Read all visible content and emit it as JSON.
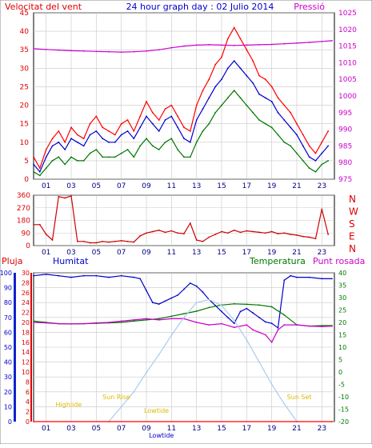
{
  "chart_data": [
    {
      "type": "line",
      "title": "24 hour graph day : 02 Julio 2014",
      "left_label": "Velocitat del vent",
      "right_label": "Pressió",
      "x_ticks": [
        "01",
        "03",
        "05",
        "07",
        "09",
        "11",
        "13",
        "15",
        "17",
        "19",
        "21",
        "23"
      ],
      "ylim": [
        0,
        45
      ],
      "y_ticks": [
        "0",
        "5",
        "10",
        "15",
        "20",
        "25",
        "30",
        "35",
        "40",
        "45"
      ],
      "y2lim": [
        975,
        1025
      ],
      "y2_ticks": [
        "975",
        "980",
        "985",
        "990",
        "995",
        "1000",
        "1005",
        "1010",
        "1015",
        "1020",
        "1025"
      ],
      "series": [
        {
          "color": "#ff0000",
          "x": [
            0,
            0.5,
            1,
            1.5,
            2,
            2.5,
            3,
            3.5,
            4,
            4.5,
            5,
            5.5,
            6,
            6.5,
            7,
            7.5,
            8,
            8.5,
            9,
            9.5,
            10,
            10.5,
            11,
            11.5,
            12,
            12.5,
            13,
            13.5,
            14,
            14.5,
            15,
            15.5,
            16,
            16.5,
            17,
            17.5,
            18,
            18.5,
            19,
            19.5,
            20,
            20.5,
            21,
            21.5,
            22,
            22.5,
            23,
            23.5
          ],
          "values": [
            6,
            3,
            8,
            11,
            13,
            10,
            14,
            12,
            11,
            15,
            17,
            14,
            13,
            12,
            15,
            16,
            13,
            17,
            21,
            18,
            16,
            19,
            20,
            17,
            14,
            13,
            20,
            24,
            27,
            31,
            33,
            38,
            41,
            38,
            35,
            32,
            28,
            27,
            25,
            22,
            20,
            18,
            15,
            12,
            9,
            7,
            10,
            13
          ]
        },
        {
          "color": "#0000cc",
          "x": [
            0,
            0.5,
            1,
            1.5,
            2,
            2.5,
            3,
            3.5,
            4,
            4.5,
            5,
            5.5,
            6,
            6.5,
            7,
            7.5,
            8,
            8.5,
            9,
            9.5,
            10,
            10.5,
            11,
            11.5,
            12,
            12.5,
            13,
            13.5,
            14,
            14.5,
            15,
            15.5,
            16,
            16.5,
            17,
            17.5,
            18,
            18.5,
            19,
            19.5,
            20,
            20.5,
            21,
            21.5,
            22,
            22.5,
            23,
            23.5
          ],
          "values": [
            4,
            2,
            6,
            9,
            10,
            8,
            11,
            10,
            9,
            12,
            13,
            11,
            10,
            10,
            12,
            13,
            11,
            14,
            17,
            15,
            13,
            16,
            17,
            14,
            11,
            10,
            16,
            19,
            22,
            25,
            27,
            30,
            32,
            30,
            28,
            26,
            23,
            22,
            21,
            18,
            16,
            14,
            12,
            9,
            6,
            5,
            7,
            9
          ]
        },
        {
          "color": "#007700",
          "x": [
            0,
            0.5,
            1,
            1.5,
            2,
            2.5,
            3,
            3.5,
            4,
            4.5,
            5,
            5.5,
            6,
            6.5,
            7,
            7.5,
            8,
            8.5,
            9,
            9.5,
            10,
            10.5,
            11,
            11.5,
            12,
            12.5,
            13,
            13.5,
            14,
            14.5,
            15,
            15.5,
            16,
            16.5,
            17,
            17.5,
            18,
            18.5,
            19,
            19.5,
            20,
            20.5,
            21,
            21.5,
            22,
            22.5,
            23,
            23.5
          ],
          "values": [
            2,
            1,
            3,
            5,
            6,
            4,
            6,
            5,
            5,
            7,
            8,
            6,
            6,
            6,
            7,
            8,
            6,
            9,
            11,
            9,
            8,
            10,
            11,
            8,
            6,
            6,
            10,
            13,
            15,
            18,
            20,
            22,
            24,
            22,
            20,
            18,
            16,
            15,
            14,
            12,
            10,
            9,
            7,
            5,
            3,
            2,
            4,
            5
          ]
        },
        {
          "color": "#cc00cc",
          "axis": "right",
          "x": [
            0,
            1,
            2,
            3,
            4,
            5,
            6,
            7,
            8,
            9,
            10,
            11,
            12,
            13,
            14,
            15,
            16,
            17,
            18,
            19,
            20,
            21,
            22,
            23,
            23.8
          ],
          "values": [
            1014.2,
            1014.0,
            1013.8,
            1013.6,
            1013.5,
            1013.4,
            1013.3,
            1013.2,
            1013.3,
            1013.5,
            1013.9,
            1014.5,
            1015.0,
            1015.3,
            1015.4,
            1015.3,
            1015.2,
            1015.3,
            1015.4,
            1015.5,
            1015.7,
            1015.9,
            1016.1,
            1016.4,
            1016.6
          ]
        }
      ]
    },
    {
      "type": "line",
      "ylim": [
        0,
        360
      ],
      "y_ticks": [
        "0",
        "90",
        "180",
        "270",
        "360"
      ],
      "right_ticks": [
        "N",
        "W",
        "S",
        "E",
        "N"
      ],
      "x_ticks": [
        "01",
        "03",
        "05",
        "07",
        "09",
        "11",
        "13",
        "15",
        "17",
        "19",
        "21",
        "23"
      ],
      "series": [
        {
          "color": "#cc0000",
          "x": [
            0,
            0.5,
            1,
            1.5,
            2,
            2.5,
            3,
            3.5,
            4,
            4.5,
            5,
            5.5,
            6,
            6.5,
            7,
            7.5,
            8,
            8.5,
            9,
            9.5,
            10,
            10.5,
            11,
            11.5,
            12,
            12.5,
            13,
            13.5,
            14,
            14.5,
            15,
            15.5,
            16,
            16.5,
            17,
            17.5,
            18,
            18.5,
            19,
            19.5,
            20,
            20.5,
            21,
            21.5,
            22,
            22.5,
            23,
            23.5
          ],
          "values": [
            150,
            150,
            80,
            40,
            350,
            340,
            355,
            30,
            30,
            20,
            20,
            30,
            25,
            30,
            35,
            30,
            25,
            70,
            90,
            100,
            110,
            95,
            105,
            90,
            85,
            160,
            40,
            30,
            60,
            80,
            100,
            90,
            110,
            95,
            105,
            100,
            95,
            90,
            100,
            85,
            90,
            80,
            75,
            65,
            60,
            50,
            260,
            80
          ]
        }
      ]
    },
    {
      "type": "line",
      "labels": {
        "rain": "Pluja",
        "humidity": "Humitat",
        "temperature": "Temperatura",
        "dewpoint": "Punt rosada"
      },
      "ylim_left": [
        0,
        100
      ],
      "y_ticks_left_outer": [
        "0",
        "10",
        "20",
        "30",
        "40",
        "50",
        "60",
        "70",
        "80",
        "90",
        "100"
      ],
      "y_ticks_left_inner": [
        "0",
        "2",
        "4",
        "6",
        "8",
        "10",
        "12",
        "14",
        "16",
        "18",
        "20",
        "22",
        "24",
        "26",
        "28",
        "30"
      ],
      "ylim_right": [
        -20,
        40
      ],
      "y_ticks_right": [
        "-20",
        "-15",
        "-10",
        "-5",
        "0",
        "5",
        "10",
        "15",
        "20",
        "25",
        "30",
        "35",
        "40"
      ],
      "x_ticks": [
        "01",
        "03",
        "05",
        "07",
        "09",
        "11",
        "13",
        "15",
        "17",
        "19",
        "21",
        "23"
      ],
      "annotations": [
        {
          "text": "Highiide",
          "x": 2.8,
          "y": 10
        },
        {
          "text": "Sun Rise",
          "x": 6.6,
          "y": 15
        },
        {
          "text": "Lowtide",
          "x": 9.8,
          "y": 6
        },
        {
          "text": "Lowtide",
          "x": 10.2,
          "y": -18
        },
        {
          "text": "Sun Set",
          "x": 21.2,
          "y": 15
        }
      ],
      "series": [
        {
          "color": "#0000cc",
          "x": [
            0,
            1,
            2,
            3,
            4,
            5,
            6,
            7,
            8,
            8.5,
            9,
            9.5,
            10,
            10.5,
            11,
            11.5,
            12,
            12.5,
            13,
            13.5,
            14,
            14.5,
            15,
            15.5,
            16,
            16.5,
            17,
            17.5,
            18,
            18.5,
            19,
            19.5,
            20,
            20.5,
            21,
            22,
            23,
            23.8
          ],
          "values": [
            98,
            99,
            98,
            97,
            98,
            98,
            97,
            98,
            97,
            96,
            88,
            80,
            79,
            81,
            83,
            85,
            89,
            93,
            91,
            87,
            82,
            78,
            74,
            70,
            66,
            74,
            76,
            73,
            70,
            67,
            66,
            63,
            95,
            98,
            97,
            97,
            96,
            96
          ]
        },
        {
          "color": "#007700",
          "axis": "right",
          "x": [
            0,
            1,
            2,
            3,
            4,
            5,
            6,
            7,
            8,
            9,
            10,
            11,
            12,
            13,
            14,
            15,
            16,
            17,
            18,
            19,
            20,
            21,
            22,
            23,
            23.8
          ],
          "values": [
            20.5,
            20.0,
            19.5,
            19.4,
            19.5,
            19.6,
            19.8,
            20.0,
            20.5,
            21.0,
            21.5,
            22.5,
            23.5,
            24.5,
            26.0,
            27.0,
            27.5,
            27.3,
            27.0,
            26.3,
            23.0,
            19.0,
            18.5,
            18.7,
            18.7
          ]
        },
        {
          "color": "#cc00cc",
          "axis": "right",
          "x": [
            0,
            1,
            2,
            3,
            4,
            5,
            6,
            7,
            8,
            9,
            10,
            11,
            12,
            13,
            14,
            15,
            16,
            17,
            17.5,
            18,
            18.5,
            19,
            19.5,
            20,
            21,
            22,
            23,
            23.8
          ],
          "values": [
            20,
            19.8,
            19.5,
            19.4,
            19.5,
            19.8,
            20.0,
            20.5,
            21.0,
            21.5,
            21.0,
            21.5,
            21.5,
            20.0,
            19.0,
            19.5,
            18.0,
            19.0,
            17.0,
            16.0,
            15.0,
            12.0,
            17.0,
            19.0,
            19.0,
            18.5,
            18.3,
            18.5
          ]
        },
        {
          "color": "#aaccee",
          "x": [
            6,
            7,
            8,
            9,
            10,
            11,
            12,
            13,
            14,
            15,
            16,
            17,
            18,
            19,
            20,
            21
          ],
          "values": [
            0,
            10,
            20,
            33,
            45,
            58,
            70,
            80,
            82,
            78,
            68,
            55,
            40,
            25,
            12,
            0
          ]
        },
        {
          "color": "#ff0000",
          "x": [
            0,
            23.8
          ],
          "values": [
            0,
            0
          ]
        }
      ]
    }
  ]
}
